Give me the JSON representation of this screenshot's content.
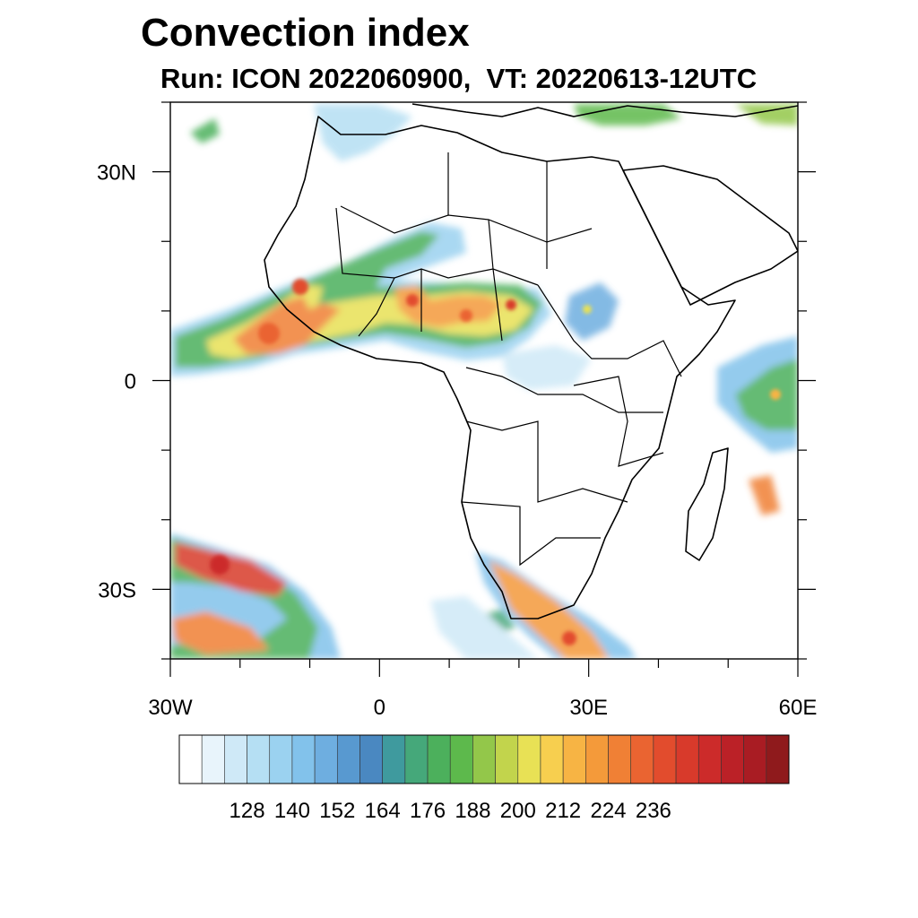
{
  "title": "Convection index",
  "subtitle": "Run: ICON 2022060900,  VT: 20220613-12UTC",
  "map": {
    "region": "Africa",
    "field": "Convection index",
    "lon_range": [
      -30,
      60
    ],
    "lat_range": [
      -40,
      40
    ],
    "lat_ticks": [
      {
        "value": 30,
        "label": "30N"
      },
      {
        "value": 0,
        "label": "0"
      },
      {
        "value": -30,
        "label": "30S"
      }
    ],
    "lon_ticks": [
      {
        "value": -30,
        "label": "30W"
      },
      {
        "value": 0,
        "label": "0"
      },
      {
        "value": 30,
        "label": "30E"
      },
      {
        "value": 60,
        "label": "60E"
      }
    ]
  },
  "colorbar": {
    "labels": [
      "128",
      "140",
      "152",
      "164",
      "176",
      "188",
      "200",
      "212",
      "224",
      "236"
    ],
    "colors": [
      "#ffffff",
      "#e8f4fb",
      "#cfe9f7",
      "#b5dff3",
      "#9bd2f0",
      "#82c2eb",
      "#6eaee0",
      "#5899d0",
      "#4a88c1",
      "#3f9a9e",
      "#45a87a",
      "#4cb05c",
      "#5db94c",
      "#93c74a",
      "#c2d44c",
      "#e8e155",
      "#f7cf4f",
      "#f7b444",
      "#f49a3a",
      "#f08035",
      "#ea6431",
      "#e24c2d",
      "#d83a2b",
      "#cc2b2a",
      "#bb2127",
      "#a91c23",
      "#8f1a1c"
    ]
  }
}
